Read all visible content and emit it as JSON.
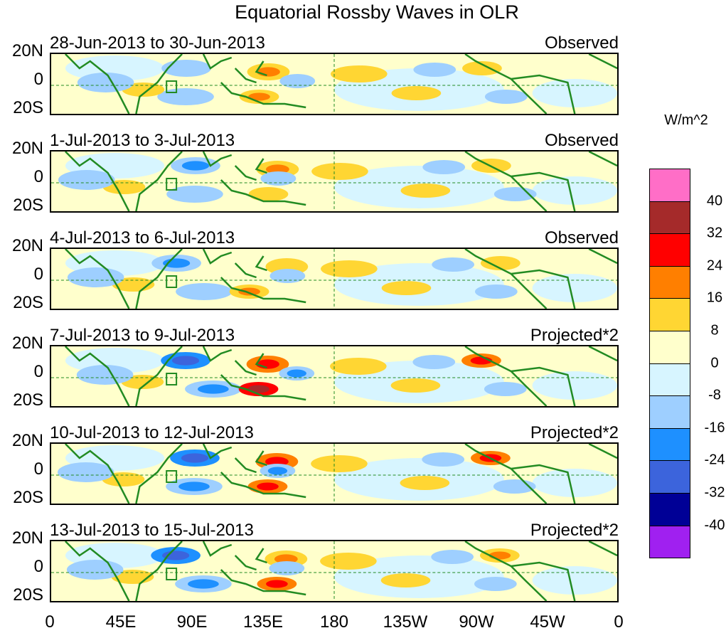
{
  "title": "Equatorial Rossby Waves in OLR",
  "panels": [
    {
      "dates": "28-Jun-2013 to 30-Jun-2013",
      "kind": "Observed",
      "scale": 0.6
    },
    {
      "dates": "1-Jul-2013 to 3-Jul-2013",
      "kind": "Observed",
      "scale": 0.55
    },
    {
      "dates": "4-Jul-2013 to 6-Jul-2013",
      "kind": "Observed",
      "scale": 0.5
    },
    {
      "dates": "7-Jul-2013 to 9-Jul-2013",
      "kind": "Projected*2",
      "scale": 1.0
    },
    {
      "dates": "10-Jul-2013 to 12-Jul-2013",
      "kind": "Projected*2",
      "scale": 0.9
    },
    {
      "dates": "13-Jul-2013 to 15-Jul-2013",
      "kind": "Projected*2",
      "scale": 0.75
    }
  ],
  "lat_labels": [
    "20N",
    "0",
    "20S"
  ],
  "lon_labels": [
    "0",
    "45E",
    "90E",
    "135E",
    "180",
    "135W",
    "90W",
    "45W",
    "0"
  ],
  "legend": {
    "unit": "W/m^2",
    "ticks": [
      "40",
      "32",
      "24",
      "16",
      "8",
      "0",
      "-8",
      "-16",
      "-24",
      "-32",
      "-40"
    ],
    "colors": [
      "#ff6ec7",
      "#a52a2a",
      "#ff0000",
      "#ff7f00",
      "#ffd633",
      "#ffffcc",
      "#d7f5ff",
      "#9ecfff",
      "#1e90ff",
      "#3c64dc",
      "#000096",
      "#a020f0"
    ]
  }
}
